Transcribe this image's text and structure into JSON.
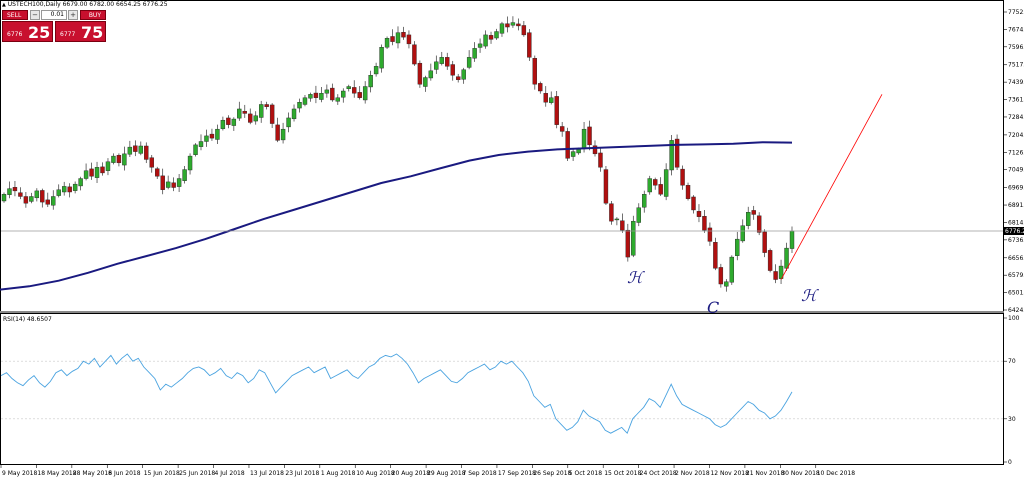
{
  "symbol_bar": {
    "text": "USTECH100,Daily  6679.00 6782.00 6654.25 6776.25"
  },
  "trade_panel": {
    "sell_label": "SELL",
    "buy_label": "BUY",
    "lot_value": "0.01",
    "sell_price_small": "6776",
    "sell_price_big": "25",
    "buy_price_small": "6777",
    "buy_price_big": "75",
    "accent_color": "#c8102e"
  },
  "rsi_label": "RSI(14) 48.6507",
  "annotations": [
    {
      "text": "ℋ"
    },
    {
      "text": "C"
    },
    {
      "text": "ℋ"
    }
  ],
  "chart_data": {
    "type": "candlestick",
    "symbol": "USTECH100",
    "timeframe": "Daily",
    "current_price_label": "6776.25",
    "price_axis_ticks": [
      "7752.00",
      "7674.45",
      "7596.90",
      "7517.00",
      "7439.45",
      "7361.90",
      "7284.35",
      "7204.45",
      "7126.90",
      "7049.35",
      "6969.45",
      "6891.90",
      "6814.35",
      "6736.80",
      "6656.90",
      "6579.35",
      "6501.80",
      "6424.25"
    ],
    "rsi_axis_ticks": [
      "100",
      "70",
      "30",
      "0"
    ],
    "x_ticks": [
      "9 May 2018",
      "18 May 2018",
      "28 May 2018",
      "6 Jun 2018",
      "15 Jun 2018",
      "25 Jun 2018",
      "4 Jul 2018",
      "13 Jul 2018",
      "23 Jul 2018",
      "1 Aug 2018",
      "10 Aug 2018",
      "20 Aug 2018",
      "29 Aug 2018",
      "7 Sep 2018",
      "17 Sep 2018",
      "26 Sep 2018",
      "5 Oct 2018",
      "15 Oct 2018",
      "24 Oct 2018",
      "2 Nov 2018",
      "12 Nov 2018",
      "21 Nov 2018",
      "30 Nov 2018",
      "10 Dec 2018"
    ],
    "price_range": [
      6424.25,
      7752.0
    ],
    "rsi_range": [
      0,
      100
    ],
    "rsi_levels": [
      70,
      30
    ],
    "ma_color": "#1a1a80",
    "bull_color": "#2eaa2e",
    "bear_color": "#b01010",
    "rsi_color": "#4aa3e0",
    "trendline_color": "#ff0000",
    "closes": [
      6940,
      6965,
      6955,
      6930,
      6900,
      6930,
      6955,
      6905,
      6895,
      6930,
      6960,
      6975,
      6950,
      6985,
      7010,
      7045,
      7020,
      7060,
      7035,
      7085,
      7110,
      7080,
      7120,
      7150,
      7130,
      7155,
      7095,
      7060,
      7020,
      6960,
      6995,
      6970,
      7010,
      7050,
      7110,
      7160,
      7175,
      7200,
      7190,
      7230,
      7270,
      7250,
      7275,
      7320,
      7300,
      7260,
      7290,
      7340,
      7330,
      7255,
      7180,
      7230,
      7280,
      7320,
      7350,
      7370,
      7385,
      7370,
      7390,
      7405,
      7360,
      7370,
      7400,
      7420,
      7390,
      7370,
      7420,
      7470,
      7510,
      7595,
      7635,
      7620,
      7660,
      7640,
      7610,
      7520,
      7430,
      7460,
      7490,
      7530,
      7550,
      7510,
      7470,
      7450,
      7495,
      7550,
      7590,
      7610,
      7650,
      7630,
      7665,
      7700,
      7685,
      7705,
      7690,
      7650,
      7550,
      7430,
      7400,
      7350,
      7370,
      7250,
      7220,
      7100,
      7130,
      7140,
      7230,
      7160,
      7120,
      7060,
      6900,
      6820,
      6830,
      6780,
      6660,
      6820,
      6880,
      6940,
      7010,
      6980,
      6940,
      7050,
      7180,
      7060,
      6980,
      6920,
      6870,
      6840,
      6780,
      6730,
      6610,
      6540,
      6550,
      6660,
      6740,
      6800,
      6860,
      6850,
      6770,
      6680,
      6600,
      6560,
      6620,
      6700,
      6776.25
    ],
    "ma200": [
      6515,
      6530,
      6555,
      6590,
      6630,
      6665,
      6700,
      6740,
      6785,
      6830,
      6870,
      6910,
      6950,
      6990,
      7020,
      7055,
      7090,
      7115,
      7130,
      7140,
      7145,
      7150,
      7155,
      7160,
      7162,
      7165,
      7172,
      7170
    ],
    "rsi": [
      60,
      62,
      58,
      55,
      53,
      57,
      60,
      55,
      52,
      56,
      62,
      64,
      60,
      63,
      65,
      70,
      68,
      72,
      66,
      70,
      74,
      68,
      72,
      75,
      70,
      72,
      66,
      62,
      58,
      50,
      54,
      52,
      55,
      58,
      62,
      65,
      66,
      64,
      60,
      62,
      65,
      60,
      58,
      62,
      60,
      55,
      58,
      64,
      62,
      55,
      48,
      52,
      56,
      60,
      62,
      64,
      66,
      62,
      64,
      66,
      58,
      60,
      62,
      64,
      60,
      58,
      62,
      66,
      68,
      72,
      74,
      73,
      75,
      72,
      68,
      62,
      55,
      58,
      60,
      62,
      64,
      60,
      56,
      55,
      58,
      62,
      64,
      66,
      68,
      64,
      66,
      70,
      68,
      70,
      66,
      62,
      56,
      46,
      42,
      38,
      40,
      30,
      26,
      22,
      24,
      28,
      36,
      32,
      30,
      28,
      22,
      20,
      22,
      24,
      20,
      30,
      34,
      38,
      44,
      42,
      38,
      46,
      54,
      46,
      40,
      38,
      36,
      34,
      32,
      30,
      26,
      24,
      26,
      30,
      34,
      38,
      42,
      40,
      36,
      34,
      30,
      32,
      36,
      42,
      48.6507
    ]
  }
}
